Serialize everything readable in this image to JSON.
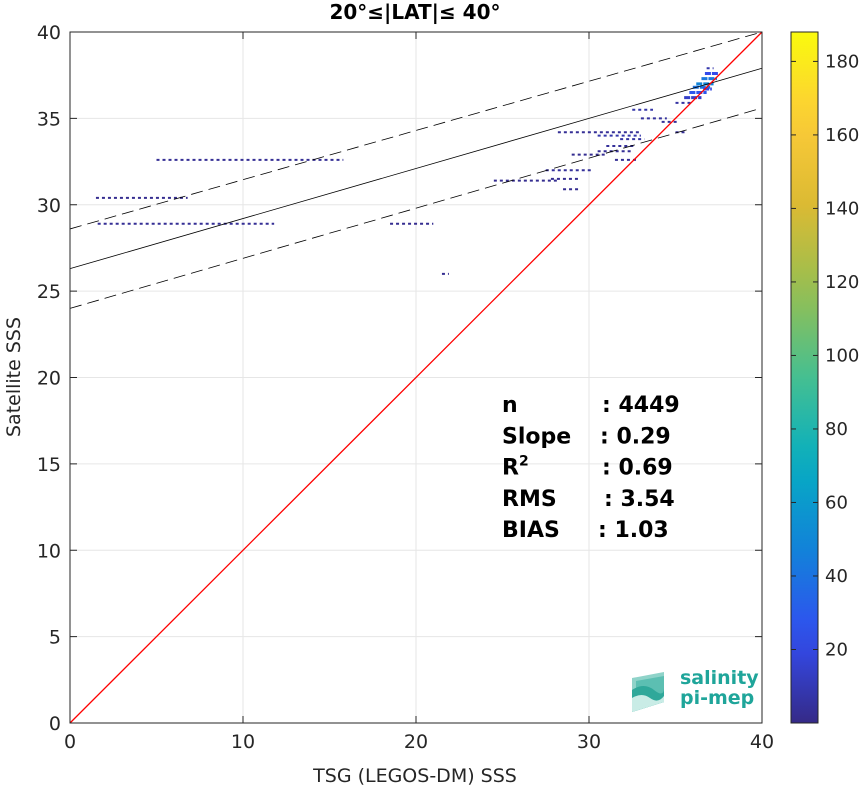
{
  "chart_data": {
    "type": "heatmap",
    "title": "20°≤|LAT|≤ 40°",
    "xlabel": "TSG (LEGOS-DM) SSS",
    "ylabel": "Satellite SSS",
    "xlim": [
      0,
      40
    ],
    "ylim": [
      0,
      40
    ],
    "xticks": [
      0,
      10,
      20,
      30,
      40
    ],
    "yticks": [
      0,
      5,
      10,
      15,
      20,
      25,
      30,
      35,
      40
    ],
    "grid": true,
    "colorbar": {
      "range": [
        0,
        188
      ],
      "ticks": [
        20,
        40,
        60,
        80,
        100,
        120,
        140,
        160,
        180
      ],
      "colormap": "parula"
    },
    "identity_line": {
      "color": "#ff0000",
      "from": [
        0,
        0
      ],
      "to": [
        40,
        40
      ]
    },
    "fit_line": {
      "color": "#000000",
      "intercept": 26.3,
      "slope": 0.29
    },
    "confidence_band": {
      "color": "#000000",
      "style": "dashed",
      "offset": 2.3
    },
    "stats": [
      {
        "label": "n",
        "value": ": 4449"
      },
      {
        "label": "Slope",
        "value": ": 0.29"
      },
      {
        "label": "R",
        "sup": "2",
        "value": ": 0.69"
      },
      {
        "label": "RMS",
        "value": ": 3.54"
      },
      {
        "label": "BIAS",
        "value": ": 1.03"
      }
    ],
    "density_segments": [
      {
        "x0": 5.0,
        "x1": 15.8,
        "y": 32.6,
        "count": 3
      },
      {
        "x0": 1.5,
        "x1": 6.8,
        "y": 30.4,
        "count": 2
      },
      {
        "x0": 1.6,
        "x1": 11.8,
        "y": 28.9,
        "count": 3
      },
      {
        "x0": 18.5,
        "x1": 21.0,
        "y": 28.9,
        "count": 2
      },
      {
        "x0": 21.5,
        "x1": 21.9,
        "y": 26.0,
        "count": 2
      },
      {
        "x0": 24.5,
        "x1": 28.2,
        "y": 31.4,
        "count": 2
      },
      {
        "x0": 27.5,
        "x1": 30.2,
        "y": 32.0,
        "count": 4
      },
      {
        "x0": 27.8,
        "x1": 29.5,
        "y": 31.5,
        "count": 2
      },
      {
        "x0": 28.5,
        "x1": 29.5,
        "y": 30.9,
        "count": 2
      },
      {
        "x0": 29.0,
        "x1": 31.0,
        "y": 32.9,
        "count": 2
      },
      {
        "x0": 30.5,
        "x1": 32.5,
        "y": 33.1,
        "count": 3
      },
      {
        "x0": 31.5,
        "x1": 32.8,
        "y": 32.6,
        "count": 3
      },
      {
        "x0": 31.0,
        "x1": 32.6,
        "y": 33.4,
        "count": 4
      },
      {
        "x0": 28.2,
        "x1": 33.0,
        "y": 34.2,
        "count": 3
      },
      {
        "x0": 30.5,
        "x1": 33.0,
        "y": 34.0,
        "count": 8
      },
      {
        "x0": 31.8,
        "x1": 33.2,
        "y": 33.8,
        "count": 6
      },
      {
        "x0": 32.5,
        "x1": 33.7,
        "y": 35.5,
        "count": 7
      },
      {
        "x0": 33.0,
        "x1": 34.5,
        "y": 35.0,
        "count": 5
      },
      {
        "x0": 34.2,
        "x1": 35.2,
        "y": 34.8,
        "count": 4
      },
      {
        "x0": 35.0,
        "x1": 35.6,
        "y": 34.2,
        "count": 3
      },
      {
        "x0": 35.0,
        "x1": 36.0,
        "y": 35.9,
        "count": 6
      },
      {
        "x0": 35.5,
        "x1": 36.5,
        "y": 36.2,
        "count": 14
      },
      {
        "x0": 35.8,
        "x1": 36.8,
        "y": 36.5,
        "count": 28
      },
      {
        "x0": 36.0,
        "x1": 37.0,
        "y": 36.8,
        "count": 40
      },
      {
        "x0": 36.2,
        "x1": 37.2,
        "y": 37.0,
        "count": 48
      },
      {
        "x0": 36.5,
        "x1": 37.4,
        "y": 37.3,
        "count": 42
      },
      {
        "x0": 36.7,
        "x1": 37.5,
        "y": 37.6,
        "count": 22
      },
      {
        "x0": 36.8,
        "x1": 37.2,
        "y": 37.9,
        "count": 8
      },
      {
        "x0": 36.6,
        "x1": 37.1,
        "y": 36.7,
        "count": 20
      }
    ]
  },
  "logo": {
    "line1": "salinity",
    "line2": "pi-mep",
    "color": "#1fa59a"
  }
}
